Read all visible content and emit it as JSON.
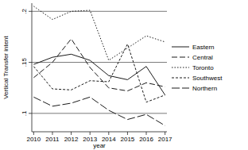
{
  "chart_data": {
    "type": "line",
    "x_label": "year",
    "y_label": "Vertical Transfer intent",
    "x": [
      2010,
      2011,
      2012,
      2013,
      2014,
      2015,
      2016,
      2017
    ],
    "xlim": [
      2009.9,
      2017.1
    ],
    "xticks": [
      2010,
      2011,
      2012,
      2013,
      2014,
      2015,
      2016,
      2017
    ],
    "ylim": [
      0.082,
      0.208
    ],
    "yticks": [
      {
        "value": 0.1,
        "label": ".1"
      },
      {
        "value": 0.15,
        "label": ".15"
      },
      {
        "value": 0.2,
        "label": ".2"
      }
    ],
    "grid": true,
    "legend": "right",
    "series": [
      {
        "name": "Eastern",
        "color": "#1a1a1a",
        "line_style": "solid",
        "values": [
          0.148,
          0.155,
          0.158,
          0.152,
          0.137,
          0.133,
          0.146,
          0.118
        ]
      },
      {
        "name": "Central",
        "color": "#1a1a1a",
        "line_style": "dashed",
        "values": [
          0.135,
          0.15,
          0.173,
          0.145,
          0.125,
          0.122,
          0.13,
          0.126
        ]
      },
      {
        "name": "Toronto",
        "color": "#1a1a1a",
        "line_style": "dotted",
        "values": [
          0.205,
          0.192,
          0.2,
          0.201,
          0.152,
          0.164,
          0.176,
          0.17
        ]
      },
      {
        "name": "Southwest",
        "color": "#1a1a1a",
        "line_style": "shortdash",
        "values": [
          0.146,
          0.124,
          0.123,
          0.132,
          0.131,
          0.168,
          0.111,
          0.118
        ]
      },
      {
        "name": "Northern",
        "color": "#1a1a1a",
        "line_style": "longdash",
        "values": [
          0.116,
          0.107,
          0.11,
          0.116,
          0.103,
          0.094,
          0.099,
          0.088
        ]
      }
    ]
  }
}
